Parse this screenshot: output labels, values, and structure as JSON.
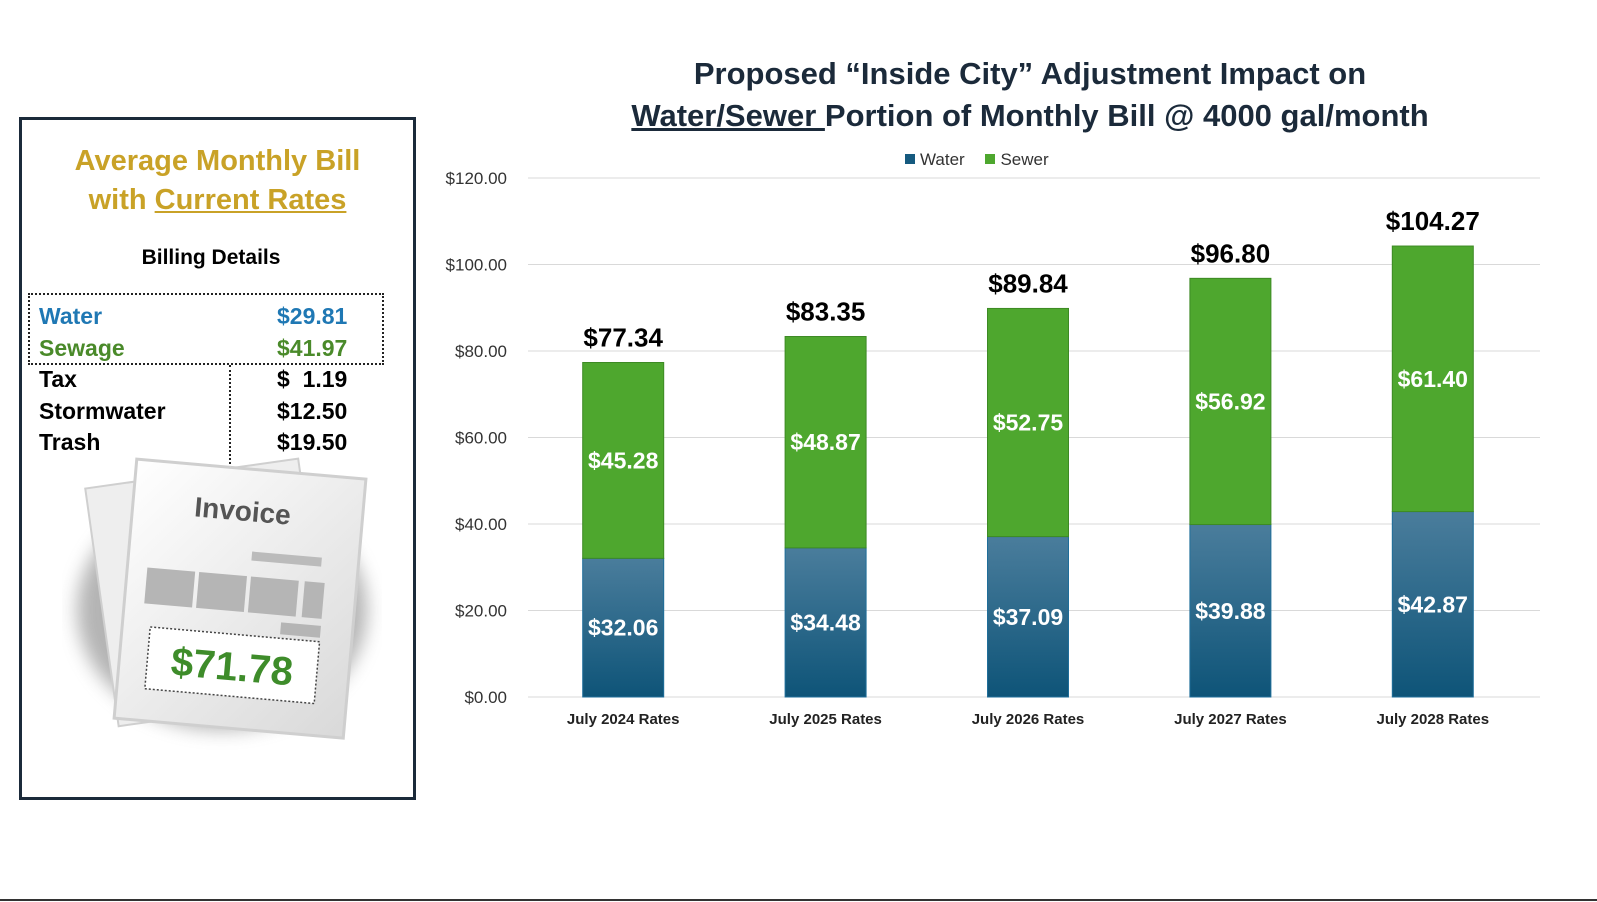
{
  "left_panel": {
    "title_line1": "Average Monthly Bill",
    "title_line2_prefix": "with ",
    "title_line2_underlined": "Current Rates",
    "billing_header": "Billing Details",
    "rows": [
      {
        "label": "Water",
        "amount": "$29.81",
        "color": "#1f78b4"
      },
      {
        "label": "Sewage",
        "amount": "$41.97",
        "color": "#4a8a2a"
      },
      {
        "label": "Tax",
        "amount": "$  1.19",
        "color": "#000000"
      },
      {
        "label": "Stormwater",
        "amount": "$12.50",
        "color": "#000000"
      },
      {
        "label": "Trash",
        "amount": "$19.50",
        "color": "#000000"
      }
    ],
    "invoice_label": "Invoice",
    "invoice_total": "$71.78"
  },
  "chart_title": {
    "line1": "Proposed “Inside City” Adjustment Impact on",
    "line2_underlined": "Water/Sewer ",
    "line2_rest": "Portion of Monthly Bill @ 4000 gal/month"
  },
  "colors": {
    "water": "#155a7f",
    "sewer": "#4ea72e",
    "title": "#c9a227",
    "water_text": "#1f78b4",
    "sewage_text": "#4a8a2a"
  },
  "chart_data": {
    "type": "bar",
    "stacked": true,
    "categories": [
      "July 2024 Rates",
      "July 2025 Rates",
      "July 2026 Rates",
      "July 2027 Rates",
      "July 2028 Rates"
    ],
    "series": [
      {
        "name": "Water",
        "values": [
          32.06,
          34.48,
          37.09,
          39.88,
          42.87
        ],
        "labels": [
          "$32.06",
          "$34.48",
          "$37.09",
          "$39.88",
          "$42.87"
        ]
      },
      {
        "name": "Sewer",
        "values": [
          45.28,
          48.87,
          52.75,
          56.92,
          61.4
        ],
        "labels": [
          "$45.28",
          "$48.87",
          "$52.75",
          "$56.92",
          "$61.40"
        ]
      }
    ],
    "totals": [
      "$77.34",
      "$83.35",
      "$89.84",
      "$96.80",
      "$104.27"
    ],
    "ylim": [
      0,
      120
    ],
    "yticks": [
      0,
      20,
      40,
      60,
      80,
      100,
      120
    ],
    "ytick_labels": [
      "$0.00",
      "$20.00",
      "$40.00",
      "$60.00",
      "$80.00",
      "$100.00",
      "$120.00"
    ],
    "legend": [
      "Water",
      "Sewer"
    ],
    "legend_position": "top-center",
    "grid": true
  }
}
